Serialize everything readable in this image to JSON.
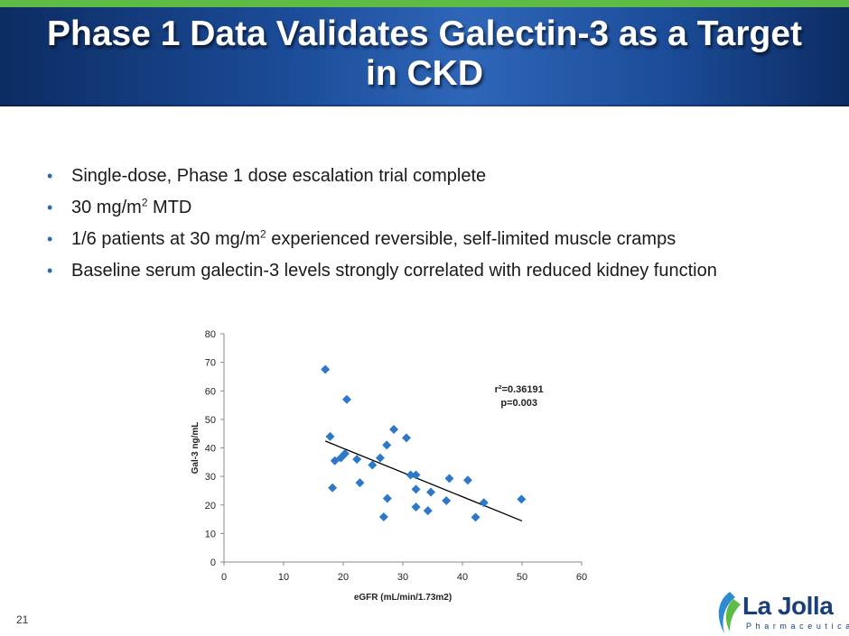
{
  "slide": {
    "title": "Phase 1 Data Validates Galectin-3 as a Target in CKD",
    "slide_number": "21",
    "bullets": [
      {
        "pre": "Single-dose, Phase 1 dose escalation trial complete",
        "sup": "",
        "post": ""
      },
      {
        "pre": "30 mg/m",
        "sup": "2",
        "post": " MTD"
      },
      {
        "pre": "1/6 patients at 30 mg/m",
        "sup": "2",
        "post": " experienced reversible, self-limited muscle cramps"
      },
      {
        "pre": "Baseline serum galectin-3 levels strongly correlated with reduced kidney function",
        "sup": "",
        "post": ""
      }
    ],
    "logo": {
      "word": "La Jolla",
      "tagline": "Pharmaceutical"
    }
  },
  "colors": {
    "header": "#1c4d9a",
    "top_stripe": "#5dbb46",
    "marker": "#2e78c9",
    "trendline": "#000000",
    "bullet_dot": "#2c69b5"
  },
  "chart_data": {
    "type": "scatter",
    "title": "",
    "xlabel": "eGFR (mL/min/1.73m2)",
    "ylabel": "Gal-3 ng/mL",
    "xlim": [
      0,
      60
    ],
    "ylim": [
      0,
      80
    ],
    "xticks": [
      0,
      10,
      20,
      30,
      40,
      50,
      60
    ],
    "yticks": [
      0,
      10,
      20,
      30,
      40,
      50,
      60,
      70,
      80
    ],
    "grid": false,
    "annotation": [
      "r²=0.36191",
      "p=0.003"
    ],
    "points": [
      {
        "x": 17.0,
        "y": 67.5
      },
      {
        "x": 17.8,
        "y": 44.0
      },
      {
        "x": 18.2,
        "y": 26.0
      },
      {
        "x": 18.6,
        "y": 35.5
      },
      {
        "x": 19.6,
        "y": 36.5
      },
      {
        "x": 20.3,
        "y": 38.0
      },
      {
        "x": 20.6,
        "y": 57.0
      },
      {
        "x": 22.3,
        "y": 36.0
      },
      {
        "x": 22.8,
        "y": 27.8
      },
      {
        "x": 24.9,
        "y": 34.0
      },
      {
        "x": 26.2,
        "y": 36.5
      },
      {
        "x": 26.8,
        "y": 15.8
      },
      {
        "x": 27.3,
        "y": 41.0
      },
      {
        "x": 27.4,
        "y": 22.3
      },
      {
        "x": 28.5,
        "y": 46.5
      },
      {
        "x": 30.6,
        "y": 43.5
      },
      {
        "x": 31.3,
        "y": 30.5
      },
      {
        "x": 32.2,
        "y": 30.5
      },
      {
        "x": 32.2,
        "y": 25.5
      },
      {
        "x": 32.2,
        "y": 19.3
      },
      {
        "x": 34.2,
        "y": 18.0
      },
      {
        "x": 34.7,
        "y": 24.5
      },
      {
        "x": 37.3,
        "y": 21.5
      },
      {
        "x": 37.8,
        "y": 29.3
      },
      {
        "x": 40.9,
        "y": 28.7
      },
      {
        "x": 42.2,
        "y": 15.7
      },
      {
        "x": 43.6,
        "y": 20.8
      },
      {
        "x": 49.9,
        "y": 22.0
      }
    ],
    "trendline": {
      "x1": 17.0,
      "y1": 42.4,
      "x2": 50.0,
      "y2": 14.4
    }
  }
}
